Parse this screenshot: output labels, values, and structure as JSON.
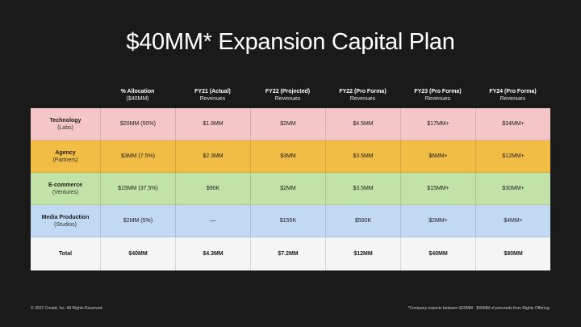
{
  "title": "$40MM* Expansion Capital Plan",
  "columns": [
    {
      "h1": "",
      "h2": ""
    },
    {
      "h1": "% Allocation",
      "h2": "($40MM)"
    },
    {
      "h1": "FY21 (Actual)",
      "h2": "Revenues"
    },
    {
      "h1": "FY22 (Projected)",
      "h2": "Revenues"
    },
    {
      "h1": "FY22 (Pro Forma)",
      "h2": "Revenues"
    },
    {
      "h1": "FY23 (Pro Forma)",
      "h2": "Revenues"
    },
    {
      "h1": "FY24 (Pro Forma)",
      "h2": "Revenues"
    }
  ],
  "rows": [
    {
      "name": "Technology",
      "sub": "(Labs)",
      "color": "#f4c6c8",
      "cells": [
        "$20MM (50%)",
        "$1.9MM",
        "$2MM",
        "$4.5MM",
        "$17MM+",
        "$34MM+"
      ]
    },
    {
      "name": "Agency",
      "sub": "(Partners)",
      "color": "#f2bd45",
      "cells": [
        "$3MM (7.5%)",
        "$2.3MM",
        "$3MM",
        "$3.5MM",
        "$6MM+",
        "$12MM+"
      ]
    },
    {
      "name": "E-commerce",
      "sub": "(Ventures)",
      "color": "#c2e3a7",
      "cells": [
        "$15MM (37.5%)",
        "$90K",
        "$2MM",
        "$3.5MM",
        "$15MM+",
        "$30MM+"
      ]
    },
    {
      "name": "Media Production",
      "sub": "(Studios)",
      "color": "#c2d9f4",
      "cells": [
        "$2MM (5%)",
        "—",
        "$155K",
        "$500K",
        "$2MM+",
        "$4MM+"
      ]
    },
    {
      "name": "Total",
      "sub": "",
      "color": "#f5f5f5",
      "cells": [
        "$40MM",
        "$4.3MM",
        "$7.2MM",
        "$12MM",
        "$40MM",
        "$80MM"
      ]
    }
  ],
  "footer": {
    "left": "© 2022 Creatd, Inc. All Rights Reserved.",
    "right": "*Company expects between $20MM - $40MM of proceeds from Rights Offering."
  }
}
